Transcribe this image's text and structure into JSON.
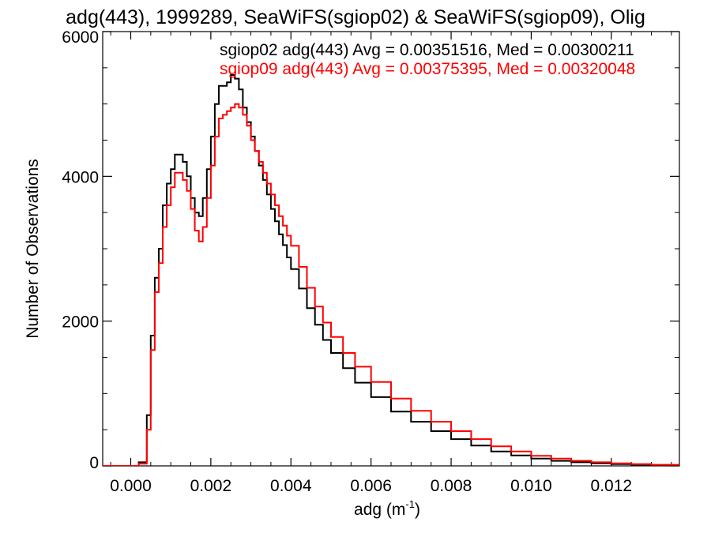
{
  "chart_data": {
    "type": "line",
    "title": "adg(443), 1999289, SeaWiFS(sgiop02) & SeaWiFS(sgiop09), Olig",
    "xlabel": "adg (m",
    "xlabel_sup": "-1",
    "xlabel_close": ")",
    "ylabel": "Number of Observations",
    "xlim": [
      -0.0007,
      0.0137
    ],
    "ylim": [
      0,
      6000
    ],
    "x_ticks": [
      0.0,
      0.002,
      0.004,
      0.006,
      0.008,
      0.01,
      0.012
    ],
    "x_tick_labels": [
      "0.000",
      "0.002",
      "0.004",
      "0.006",
      "0.008",
      "0.010",
      "0.012"
    ],
    "y_ticks": [
      0,
      2000,
      4000,
      6000
    ],
    "y_tick_labels": [
      "0",
      "2000",
      "4000",
      "6000"
    ],
    "grid": false,
    "legend_placement": "top-right",
    "series": [
      {
        "name": "sgiop02 adg(443) Avg = 0.00351516, Med = 0.00300211",
        "color": "#000000",
        "x": [
          -0.0007,
          0.0,
          0.0002,
          0.0004,
          0.0005,
          0.0006,
          0.0007,
          0.0008,
          0.0009,
          0.001,
          0.0011,
          0.0012,
          0.0013,
          0.0014,
          0.0015,
          0.0016,
          0.0017,
          0.0018,
          0.0019,
          0.002,
          0.0021,
          0.0022,
          0.0023,
          0.0024,
          0.0025,
          0.0026,
          0.0027,
          0.0028,
          0.0029,
          0.003,
          0.0031,
          0.0032,
          0.0033,
          0.0034,
          0.0035,
          0.0036,
          0.0037,
          0.0038,
          0.0039,
          0.004,
          0.0042,
          0.0044,
          0.0046,
          0.0048,
          0.005,
          0.0053,
          0.0056,
          0.006,
          0.0065,
          0.007,
          0.0075,
          0.008,
          0.0085,
          0.009,
          0.0095,
          0.01,
          0.0105,
          0.011,
          0.0115,
          0.012,
          0.0125,
          0.013,
          0.0137
        ],
        "y": [
          0,
          0,
          50,
          700,
          1800,
          2600,
          3000,
          3600,
          3900,
          4100,
          4300,
          4300,
          4200,
          4000,
          3700,
          3500,
          3450,
          3700,
          4100,
          4550,
          5000,
          5250,
          5250,
          5300,
          5400,
          5350,
          5200,
          4950,
          4750,
          4550,
          4350,
          4150,
          3950,
          3750,
          3550,
          3380,
          3200,
          3050,
          2880,
          2720,
          2450,
          2180,
          1950,
          1740,
          1560,
          1350,
          1150,
          950,
          750,
          610,
          480,
          370,
          280,
          200,
          145,
          100,
          70,
          50,
          35,
          25,
          15,
          10,
          5
        ]
      },
      {
        "name": "sgiop09 adg(443) Avg = 0.00375395, Med = 0.00320048",
        "color": "#ff0000",
        "x": [
          -0.0007,
          0.0,
          0.0002,
          0.0004,
          0.0005,
          0.0006,
          0.0007,
          0.0008,
          0.0009,
          0.001,
          0.0011,
          0.0012,
          0.0013,
          0.0014,
          0.0015,
          0.0016,
          0.0017,
          0.0018,
          0.0019,
          0.002,
          0.0021,
          0.0022,
          0.0023,
          0.0024,
          0.0025,
          0.0026,
          0.0027,
          0.0028,
          0.0029,
          0.003,
          0.0031,
          0.0032,
          0.0033,
          0.0034,
          0.0035,
          0.0036,
          0.0037,
          0.0038,
          0.0039,
          0.004,
          0.0042,
          0.0044,
          0.0046,
          0.0048,
          0.005,
          0.0053,
          0.0056,
          0.006,
          0.0065,
          0.007,
          0.0075,
          0.008,
          0.0085,
          0.009,
          0.0095,
          0.01,
          0.0105,
          0.011,
          0.0115,
          0.012,
          0.0125,
          0.013,
          0.0137
        ],
        "y": [
          0,
          0,
          30,
          500,
          1600,
          2400,
          2800,
          3300,
          3600,
          3850,
          4050,
          4050,
          3950,
          3800,
          3550,
          3250,
          3100,
          3300,
          3700,
          4150,
          4550,
          4800,
          4850,
          4900,
          4950,
          5000,
          4950,
          4850,
          4700,
          4500,
          4350,
          4200,
          4050,
          3900,
          3750,
          3600,
          3450,
          3320,
          3180,
          3040,
          2750,
          2460,
          2200,
          1980,
          1780,
          1560,
          1370,
          1160,
          930,
          760,
          610,
          480,
          370,
          270,
          200,
          140,
          100,
          70,
          50,
          35,
          25,
          15,
          8
        ]
      }
    ]
  }
}
